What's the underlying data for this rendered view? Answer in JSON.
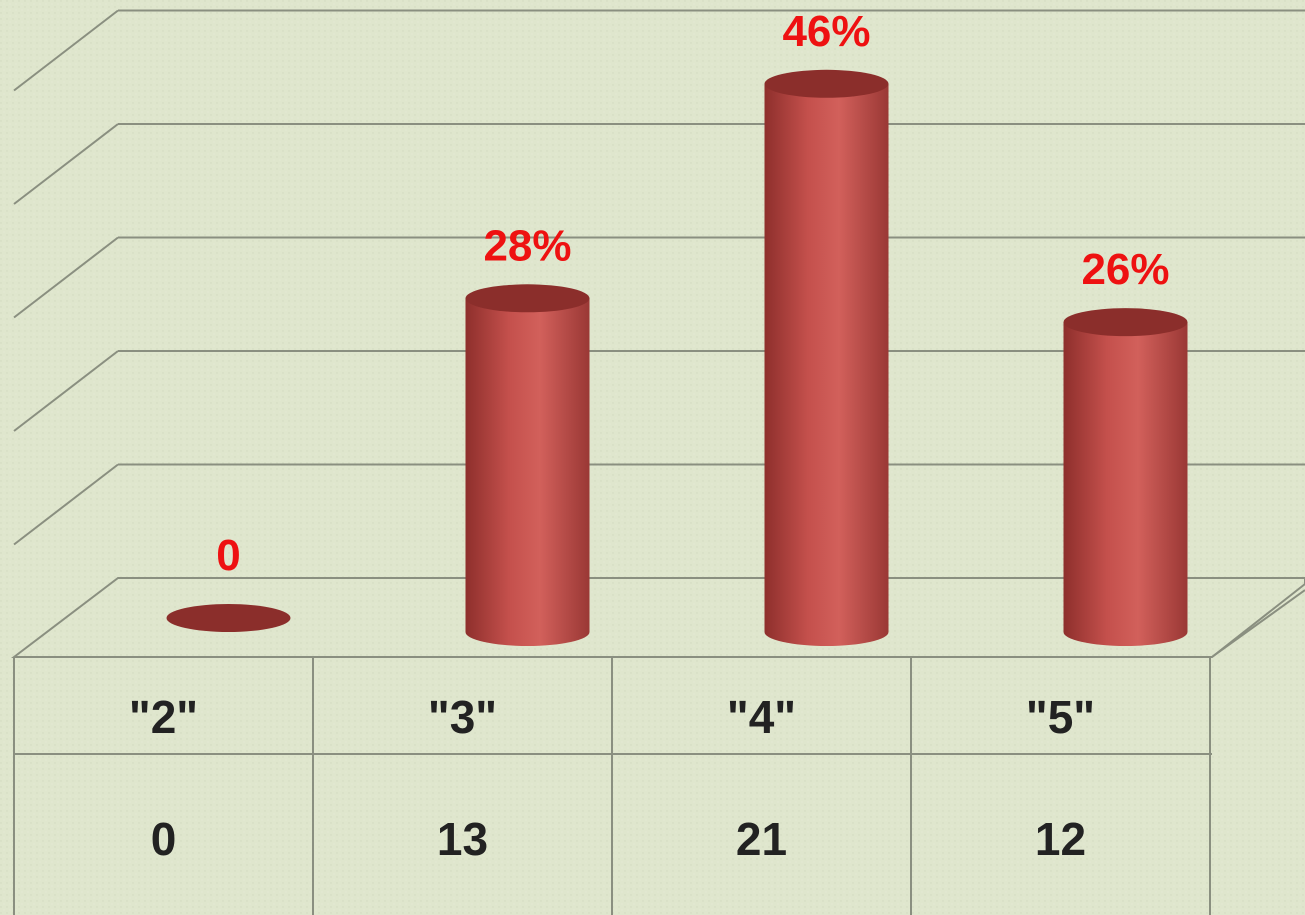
{
  "chart_data": {
    "type": "bar",
    "style": "3d-cylinder",
    "categories": [
      "\"2\"",
      "\"3\"",
      "\"4\"",
      "\"5\""
    ],
    "series": [
      {
        "values": [
          0,
          28,
          46,
          26
        ],
        "data_labels": [
          "0",
          "28%",
          "46%",
          "26%"
        ],
        "table_values": [
          "0",
          "13",
          "21",
          "12"
        ]
      }
    ],
    "ylim": [
      0,
      50
    ],
    "grid": true,
    "legend": "none",
    "colors": {
      "bar": "#c0504d",
      "bar_dark": "#8b2e2b",
      "label": "#ee1111",
      "table_text": "#222222",
      "grid": "#8a8f80",
      "background": "#dfe6cd"
    }
  }
}
